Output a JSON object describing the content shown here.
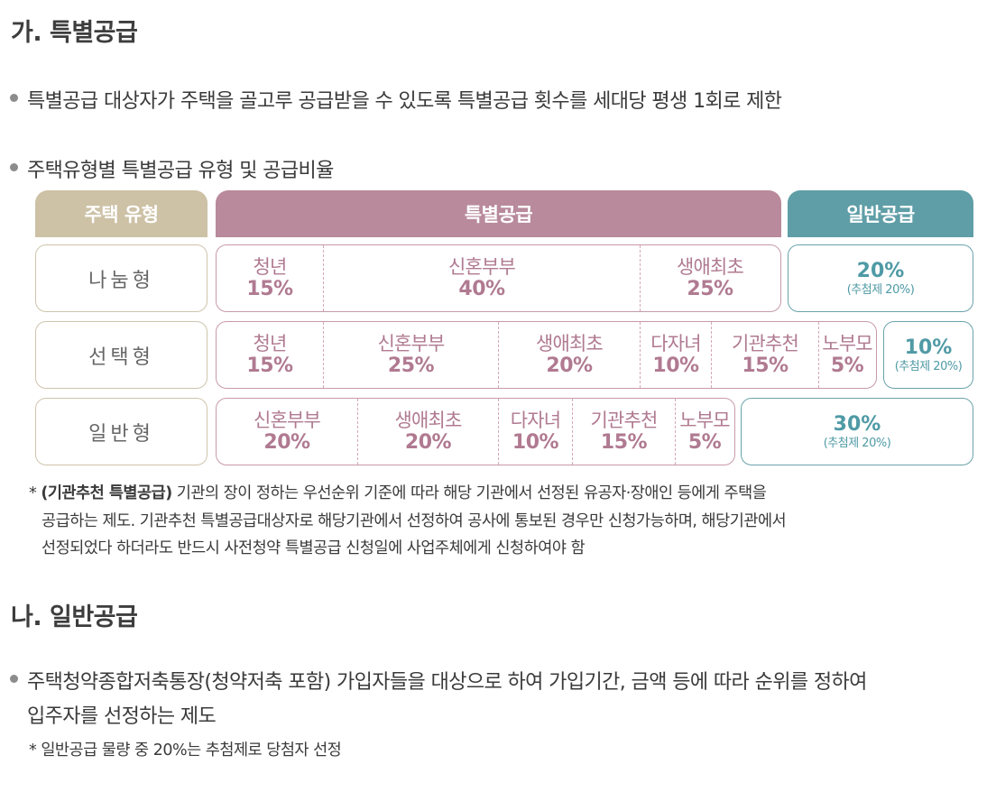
{
  "section_a": {
    "title": "가. 특별공급",
    "bullet1": "특별공급 대상자가 주택을 골고루 공급받을 수 있도록 특별공급 횟수를 세대당 평생 1회로 제한",
    "bullet2": "주택유형별 특별공급 유형 및 공급비율"
  },
  "table": {
    "headers": {
      "type": "주택 유형",
      "special": "특별공급",
      "general": "일반공급"
    },
    "colors": {
      "type": "#cdc1a6",
      "special": "#b88a9b",
      "general": "#5f9ea7"
    },
    "rows": [
      {
        "label": "나눔형",
        "special": [
          {
            "name": "청년",
            "pct": "15%"
          },
          {
            "name": "신혼부부",
            "pct": "40%"
          },
          {
            "name": "생애최초",
            "pct": "25%"
          }
        ],
        "general": {
          "pct": "20%",
          "note": "(추첨제 20%)"
        }
      },
      {
        "label": "선택형",
        "special": [
          {
            "name": "청년",
            "pct": "15%"
          },
          {
            "name": "신혼부부",
            "pct": "25%"
          },
          {
            "name": "생애최초",
            "pct": "20%"
          },
          {
            "name": "다자녀",
            "pct": "10%"
          },
          {
            "name": "기관추천",
            "pct": "15%"
          },
          {
            "name": "노부모",
            "pct": "5%"
          }
        ],
        "general": {
          "pct": "10%",
          "note": "(추첨제 20%)"
        }
      },
      {
        "label": "일반형",
        "special": [
          {
            "name": "신혼부부",
            "pct": "20%"
          },
          {
            "name": "생애최초",
            "pct": "20%"
          },
          {
            "name": "다자녀",
            "pct": "10%"
          },
          {
            "name": "기관추천",
            "pct": "15%"
          },
          {
            "name": "노부모",
            "pct": "5%"
          }
        ],
        "general": {
          "pct": "30%",
          "note": "(추첨제 20%)"
        }
      }
    ]
  },
  "footnote": {
    "star": "*",
    "bold": "(기관추천 특별공급)",
    "line1": " 기관의 장이 정하는 우선순위 기준에 따라 해당 기관에서 선정된 유공자·장애인 등에게 주택을",
    "line2": "공급하는 제도. 기관추천 특별공급대상자로 해당기관에서 선정하여 공사에 통보된 경우만 신청가능하며, 해당기관에서",
    "line3": "선정되었다 하더라도 반드시 사전청약 특별공급 신청일에 사업주체에게 신청하여야 함"
  },
  "section_b": {
    "title": "나. 일반공급",
    "bullet_line1": "주택청약종합저축통장(청약저축 포함) 가입자들을 대상으로 하여 가입기간, 금액 등에 따라 순위를 정하여",
    "bullet_line2": "입주자를 선정하는 제도",
    "note": "* 일반공급 물량 중 20%는 추첨제로 당첨자 선정"
  }
}
